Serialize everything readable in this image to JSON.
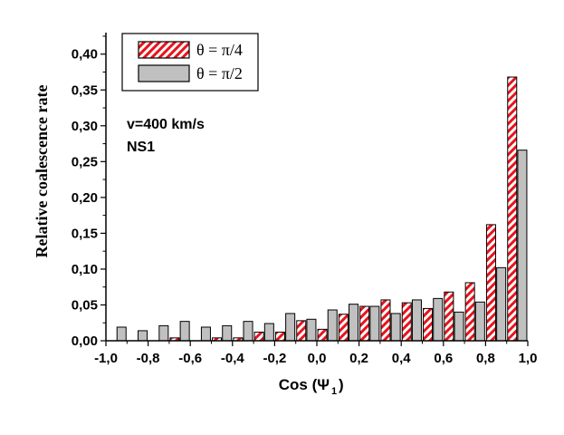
{
  "chart_data": {
    "type": "bar",
    "xlabel": "Cos (Ψ",
    "xlabel_sub": "1",
    "xlabel_close": ")",
    "ylabel": "Relative coalescence rate",
    "xlim": [
      -1.0,
      1.0
    ],
    "ylim": [
      0.0,
      0.43
    ],
    "bin_width": 0.1,
    "xtick_values": [
      -1.0,
      -0.8,
      -0.6,
      -0.4,
      -0.2,
      0.0,
      0.2,
      0.4,
      0.6,
      0.8,
      1.0
    ],
    "xtick_labels": [
      "-1,0",
      "-0,8",
      "-0,6",
      "-0,4",
      "-0,2",
      "0,0",
      "0,2",
      "0,4",
      "0,6",
      "0,8",
      "1,0"
    ],
    "ytick_values": [
      0.0,
      0.05,
      0.1,
      0.15,
      0.2,
      0.25,
      0.3,
      0.35,
      0.4
    ],
    "ytick_labels": [
      "0,00",
      "0,05",
      "0,10",
      "0,15",
      "0,20",
      "0,25",
      "0,30",
      "0,35",
      "0,40"
    ],
    "bin_starts": [
      -1.0,
      -0.9,
      -0.8,
      -0.7,
      -0.6,
      -0.5,
      -0.4,
      -0.3,
      -0.2,
      -0.1,
      0.0,
      0.1,
      0.2,
      0.3,
      0.4,
      0.5,
      0.6,
      0.7,
      0.8,
      0.9
    ],
    "legend_position": "top-left",
    "annotations": [
      "v=400 km/s",
      "NS1"
    ],
    "series": [
      {
        "name": "θ = π/4",
        "style": "hatched",
        "color": "#e8141c",
        "values": [
          0.0,
          0.0,
          0.0,
          0.004,
          0.0,
          0.004,
          0.004,
          0.012,
          0.012,
          0.028,
          0.016,
          0.037,
          0.048,
          0.057,
          0.053,
          0.045,
          0.068,
          0.081,
          0.162,
          0.368
        ]
      },
      {
        "name": "θ = π/2",
        "style": "solid",
        "color": "#c0c0c0",
        "values": [
          0.019,
          0.014,
          0.021,
          0.027,
          0.019,
          0.021,
          0.027,
          0.024,
          0.038,
          0.03,
          0.043,
          0.051,
          0.048,
          0.038,
          0.057,
          0.059,
          0.04,
          0.054,
          0.102,
          0.266
        ]
      }
    ]
  }
}
